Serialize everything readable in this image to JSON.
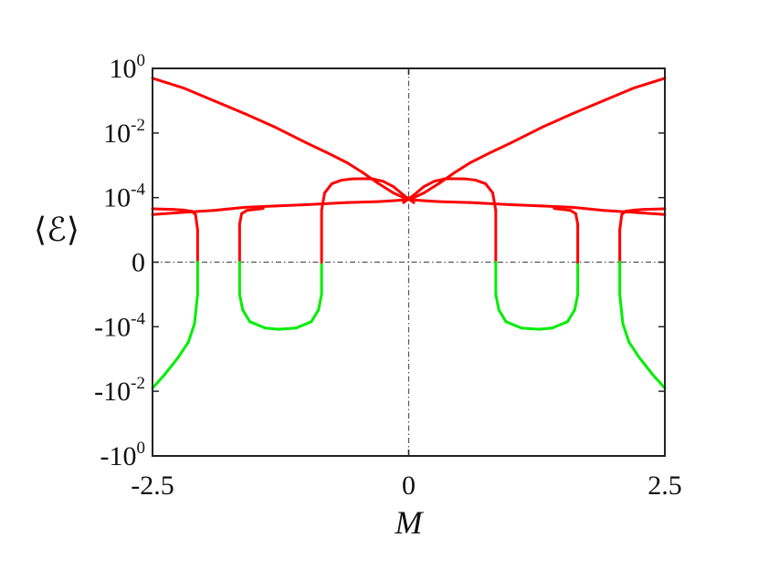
{
  "chart_data": {
    "type": "line",
    "xlabel": "M",
    "ylabel": "⟨ℰ⟩",
    "xlim": [
      -2.5,
      2.5
    ],
    "ylim": [
      -1,
      1
    ],
    "y_scale": "symmetric-log (decades 10^-4 to 10^0 on each side of 0)",
    "grid": false,
    "legend": "none",
    "colors": {
      "positive": "#ff0000",
      "negative": "#00ee00",
      "reference_lines": "#555555"
    },
    "x_ticks": [
      {
        "value": -2.5,
        "label": "-2.5"
      },
      {
        "value": 0,
        "label": "0"
      },
      {
        "value": 2.5,
        "label": "2.5"
      }
    ],
    "y_ticks": [
      {
        "value": 1,
        "base": "10",
        "exp": "0"
      },
      {
        "value": 0.01,
        "base": "10",
        "exp": "-2"
      },
      {
        "value": 0.0001,
        "base": "10",
        "exp": "-4"
      },
      {
        "value": 0,
        "base": "0",
        "exp": ""
      },
      {
        "value": -0.0001,
        "base": "-10",
        "exp": "-4"
      },
      {
        "value": -0.01,
        "base": "-10",
        "exp": "-2"
      },
      {
        "value": -1,
        "base": "-10",
        "exp": "0"
      }
    ],
    "reference_lines": {
      "x": 0,
      "y": 0
    },
    "series": [
      {
        "x": [
          -2.5,
          -2.2,
          -1.9,
          -1.6,
          -1.3,
          -1.0,
          -0.8,
          -0.6,
          -0.45,
          -0.3,
          -0.15,
          -0.05,
          0,
          0.05,
          0.15,
          0.3,
          0.6,
          1.0,
          1.3,
          1.6,
          1.9,
          2.2,
          2.5
        ],
        "y": [
          0.5,
          0.25,
          0.1,
          0.04,
          0.015,
          0.005,
          0.0025,
          0.0012,
          0.0006,
          0.00028,
          0.00014,
          0.0001,
          9e-05,
          8.5e-05,
          8e-05,
          7.5e-05,
          7e-05,
          6e-05,
          5.5e-05,
          5e-05,
          4e-05,
          3.5e-05,
          3e-05
        ]
      },
      {
        "x": [
          -2.5,
          -2.2,
          -1.9,
          -1.6,
          -1.3,
          -1.0,
          -0.6,
          -0.3,
          -0.15,
          -0.05,
          0,
          0.05,
          0.15,
          0.3,
          0.45,
          0.6,
          0.8,
          1.0,
          1.3,
          1.6,
          1.9,
          2.2,
          2.5
        ],
        "y": [
          3e-05,
          3.5e-05,
          4e-05,
          5e-05,
          5.5e-05,
          6e-05,
          7e-05,
          7.5e-05,
          8e-05,
          8.5e-05,
          9e-05,
          0.0001,
          0.00014,
          0.00028,
          0.0006,
          0.0012,
          0.0025,
          0.005,
          0.015,
          0.04,
          0.1,
          0.25,
          0.5
        ]
      },
      {
        "x": [
          -2.5,
          -2.3,
          -2.2,
          -2.12,
          -2.08,
          -2.06,
          -2.06
        ],
        "y": [
          4.5e-05,
          4.3e-05,
          4.1e-05,
          3.8e-05,
          3e-05,
          1e-05,
          0
        ]
      },
      {
        "x": [
          -2.5,
          -2.38,
          -2.25,
          -2.15,
          -2.09,
          -2.06,
          -2.06
        ],
        "y": [
          -0.008,
          -0.003,
          -0.0009,
          -0.0003,
          -8e-05,
          -1e-05,
          0
        ]
      },
      {
        "x": [
          -1.65,
          -1.65,
          -1.63,
          -1.58,
          -1.5,
          -1.45,
          -1.42
        ],
        "y": [
          0,
          1.5e-05,
          3.2e-05,
          4e-05,
          4.3e-05,
          4.5e-05,
          4.6e-05
        ]
      },
      {
        "x": [
          -1.65,
          -1.65,
          -1.62,
          -1.55,
          -1.4,
          -1.27,
          -1.1,
          -0.95,
          -0.88,
          -0.85,
          -0.85
        ],
        "y": [
          0,
          -1e-05,
          -3e-05,
          -7e-05,
          -0.00011,
          -0.00012,
          -0.00011,
          -7e-05,
          -3e-05,
          -1e-05,
          0
        ]
      },
      {
        "x": [
          -0.85,
          -0.85,
          -0.82,
          -0.75,
          -0.65,
          -0.55,
          -0.45,
          -0.35,
          -0.25,
          -0.15,
          -0.05,
          0.05
        ],
        "y": [
          0,
          4e-05,
          0.00014,
          0.00027,
          0.00035,
          0.00038,
          0.000385,
          0.00038,
          0.00032,
          0.00022,
          0.00012,
          7e-05
        ]
      },
      {
        "x": [
          -0.05,
          0.05,
          0.15,
          0.25,
          0.35,
          0.45,
          0.55,
          0.65,
          0.75,
          0.82,
          0.85,
          0.85
        ],
        "y": [
          7e-05,
          0.00012,
          0.00022,
          0.00032,
          0.00038,
          0.000385,
          0.00038,
          0.00035,
          0.00027,
          0.00014,
          4e-05,
          0
        ]
      },
      {
        "x": [
          0.85,
          0.85,
          0.88,
          0.95,
          1.1,
          1.27,
          1.4,
          1.55,
          1.62,
          1.65,
          1.65
        ],
        "y": [
          0,
          -1e-05,
          -3e-05,
          -7e-05,
          -0.00011,
          -0.00012,
          -0.00011,
          -7e-05,
          -3e-05,
          -1e-05,
          0
        ]
      },
      {
        "x": [
          1.42,
          1.45,
          1.5,
          1.58,
          1.63,
          1.65,
          1.65
        ],
        "y": [
          4.6e-05,
          4.5e-05,
          4.3e-05,
          4e-05,
          3.2e-05,
          1.5e-05,
          0
        ]
      },
      {
        "x": [
          2.06,
          2.06,
          2.08,
          2.12,
          2.2,
          2.3,
          2.5
        ],
        "y": [
          0,
          1e-05,
          3e-05,
          3.8e-05,
          4.1e-05,
          4.3e-05,
          4.5e-05
        ]
      },
      {
        "x": [
          2.06,
          2.06,
          2.09,
          2.15,
          2.25,
          2.38,
          2.5
        ],
        "y": [
          0,
          -1e-05,
          -8e-05,
          -0.0003,
          -0.0009,
          -0.003,
          -0.008
        ]
      }
    ]
  }
}
